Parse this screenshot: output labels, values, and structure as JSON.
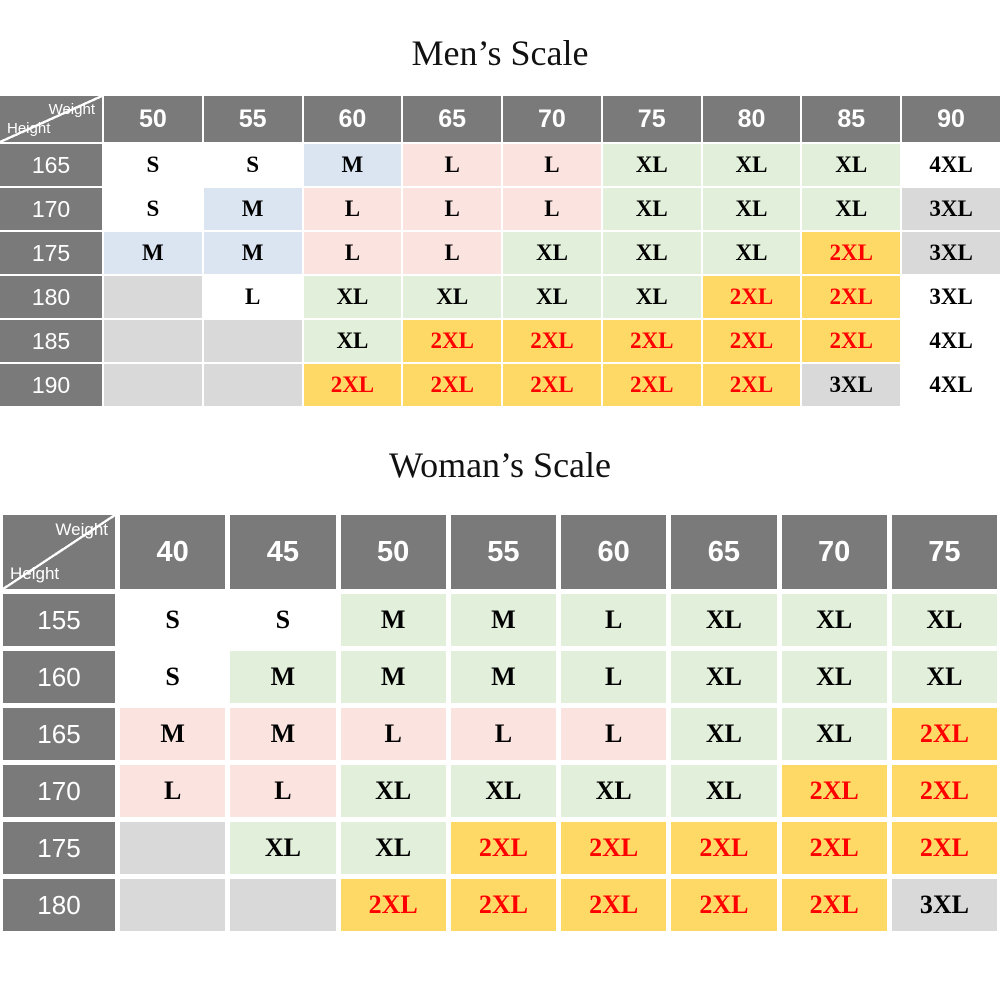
{
  "palette": {
    "header_bg": "#7a7a7a",
    "header_text": "#ffffff",
    "cell_text": "#000000",
    "red_text": "#ff0000",
    "white": "#ffffff",
    "blue": "#dbe5f1",
    "pink": "#fbe4e0",
    "green": "#e2efda",
    "yellow": "#ffd966",
    "gray": "#d9d9d9"
  },
  "chart_data": [
    {
      "type": "table",
      "title": "Men’s Scale",
      "corner_top": "Weight",
      "corner_bottom": "Height",
      "weight_columns": [
        "50",
        "55",
        "60",
        "65",
        "70",
        "75",
        "80",
        "85",
        "90"
      ],
      "rows": [
        {
          "height": "165",
          "cells": [
            {
              "t": "S",
              "bg": "white"
            },
            {
              "t": "S",
              "bg": "white"
            },
            {
              "t": "M",
              "bg": "blue"
            },
            {
              "t": "L",
              "bg": "pink"
            },
            {
              "t": "L",
              "bg": "pink"
            },
            {
              "t": "XL",
              "bg": "green"
            },
            {
              "t": "XL",
              "bg": "green"
            },
            {
              "t": "XL",
              "bg": "green"
            },
            {
              "t": "4XL",
              "bg": "white"
            }
          ]
        },
        {
          "height": "170",
          "cells": [
            {
              "t": "S",
              "bg": "white"
            },
            {
              "t": "M",
              "bg": "blue"
            },
            {
              "t": "L",
              "bg": "pink"
            },
            {
              "t": "L",
              "bg": "pink"
            },
            {
              "t": "L",
              "bg": "pink"
            },
            {
              "t": "XL",
              "bg": "green"
            },
            {
              "t": "XL",
              "bg": "green"
            },
            {
              "t": "XL",
              "bg": "green"
            },
            {
              "t": "3XL",
              "bg": "gray"
            }
          ]
        },
        {
          "height": "175",
          "cells": [
            {
              "t": "M",
              "bg": "blue"
            },
            {
              "t": "M",
              "bg": "blue"
            },
            {
              "t": "L",
              "bg": "pink"
            },
            {
              "t": "L",
              "bg": "pink"
            },
            {
              "t": "XL",
              "bg": "green"
            },
            {
              "t": "XL",
              "bg": "green"
            },
            {
              "t": "XL",
              "bg": "green"
            },
            {
              "t": "2XL",
              "bg": "yellow",
              "red": true
            },
            {
              "t": "3XL",
              "bg": "gray"
            }
          ]
        },
        {
          "height": "180",
          "cells": [
            {
              "t": "",
              "bg": "gray"
            },
            {
              "t": "L",
              "bg": "white"
            },
            {
              "t": "XL",
              "bg": "green"
            },
            {
              "t": "XL",
              "bg": "green"
            },
            {
              "t": "XL",
              "bg": "green"
            },
            {
              "t": "XL",
              "bg": "green"
            },
            {
              "t": "2XL",
              "bg": "yellow",
              "red": true
            },
            {
              "t": "2XL",
              "bg": "yellow",
              "red": true
            },
            {
              "t": "3XL",
              "bg": "white"
            }
          ]
        },
        {
          "height": "185",
          "cells": [
            {
              "t": "",
              "bg": "gray"
            },
            {
              "t": "",
              "bg": "gray"
            },
            {
              "t": "XL",
              "bg": "green"
            },
            {
              "t": "2XL",
              "bg": "yellow",
              "red": true
            },
            {
              "t": "2XL",
              "bg": "yellow",
              "red": true
            },
            {
              "t": "2XL",
              "bg": "yellow",
              "red": true
            },
            {
              "t": "2XL",
              "bg": "yellow",
              "red": true
            },
            {
              "t": "2XL",
              "bg": "yellow",
              "red": true
            },
            {
              "t": "4XL",
              "bg": "white"
            }
          ]
        },
        {
          "height": "190",
          "cells": [
            {
              "t": "",
              "bg": "gray"
            },
            {
              "t": "",
              "bg": "gray"
            },
            {
              "t": "2XL",
              "bg": "yellow",
              "red": true
            },
            {
              "t": "2XL",
              "bg": "yellow",
              "red": true
            },
            {
              "t": "2XL",
              "bg": "yellow",
              "red": true
            },
            {
              "t": "2XL",
              "bg": "yellow",
              "red": true
            },
            {
              "t": "2XL",
              "bg": "yellow",
              "red": true
            },
            {
              "t": "3XL",
              "bg": "gray"
            },
            {
              "t": "4XL",
              "bg": "white"
            }
          ]
        }
      ]
    },
    {
      "type": "table",
      "title": "Woman’s Scale",
      "corner_top": "Weight",
      "corner_bottom": "Height",
      "weight_columns": [
        "40",
        "45",
        "50",
        "55",
        "60",
        "65",
        "70",
        "75"
      ],
      "rows": [
        {
          "height": "155",
          "cells": [
            {
              "t": "S",
              "bg": "white"
            },
            {
              "t": "S",
              "bg": "white"
            },
            {
              "t": "M",
              "bg": "green"
            },
            {
              "t": "M",
              "bg": "green"
            },
            {
              "t": "L",
              "bg": "green"
            },
            {
              "t": "XL",
              "bg": "green"
            },
            {
              "t": "XL",
              "bg": "green"
            },
            {
              "t": "XL",
              "bg": "green"
            }
          ]
        },
        {
          "height": "160",
          "cells": [
            {
              "t": "S",
              "bg": "white"
            },
            {
              "t": "M",
              "bg": "green"
            },
            {
              "t": "M",
              "bg": "green"
            },
            {
              "t": "M",
              "bg": "green"
            },
            {
              "t": "L",
              "bg": "green"
            },
            {
              "t": "XL",
              "bg": "green"
            },
            {
              "t": "XL",
              "bg": "green"
            },
            {
              "t": "XL",
              "bg": "green"
            }
          ]
        },
        {
          "height": "165",
          "cells": [
            {
              "t": "M",
              "bg": "pink"
            },
            {
              "t": "M",
              "bg": "pink"
            },
            {
              "t": "L",
              "bg": "pink"
            },
            {
              "t": "L",
              "bg": "pink"
            },
            {
              "t": "L",
              "bg": "pink"
            },
            {
              "t": "XL",
              "bg": "green"
            },
            {
              "t": "XL",
              "bg": "green"
            },
            {
              "t": "2XL",
              "bg": "yellow",
              "red": true
            }
          ]
        },
        {
          "height": "170",
          "cells": [
            {
              "t": "L",
              "bg": "pink"
            },
            {
              "t": "L",
              "bg": "pink"
            },
            {
              "t": "XL",
              "bg": "green"
            },
            {
              "t": "XL",
              "bg": "green"
            },
            {
              "t": "XL",
              "bg": "green"
            },
            {
              "t": "XL",
              "bg": "green"
            },
            {
              "t": "2XL",
              "bg": "yellow",
              "red": true
            },
            {
              "t": "2XL",
              "bg": "yellow",
              "red": true
            }
          ]
        },
        {
          "height": "175",
          "cells": [
            {
              "t": "",
              "bg": "gray"
            },
            {
              "t": "XL",
              "bg": "green"
            },
            {
              "t": "XL",
              "bg": "green"
            },
            {
              "t": "2XL",
              "bg": "yellow",
              "red": true
            },
            {
              "t": "2XL",
              "bg": "yellow",
              "red": true
            },
            {
              "t": "2XL",
              "bg": "yellow",
              "red": true
            },
            {
              "t": "2XL",
              "bg": "yellow",
              "red": true
            },
            {
              "t": "2XL",
              "bg": "yellow",
              "red": true
            }
          ]
        },
        {
          "height": "180",
          "cells": [
            {
              "t": "",
              "bg": "gray"
            },
            {
              "t": "",
              "bg": "gray"
            },
            {
              "t": "2XL",
              "bg": "yellow",
              "red": true
            },
            {
              "t": "2XL",
              "bg": "yellow",
              "red": true
            },
            {
              "t": "2XL",
              "bg": "yellow",
              "red": true
            },
            {
              "t": "2XL",
              "bg": "yellow",
              "red": true
            },
            {
              "t": "2XL",
              "bg": "yellow",
              "red": true
            },
            {
              "t": "3XL",
              "bg": "gray"
            }
          ]
        }
      ]
    }
  ]
}
